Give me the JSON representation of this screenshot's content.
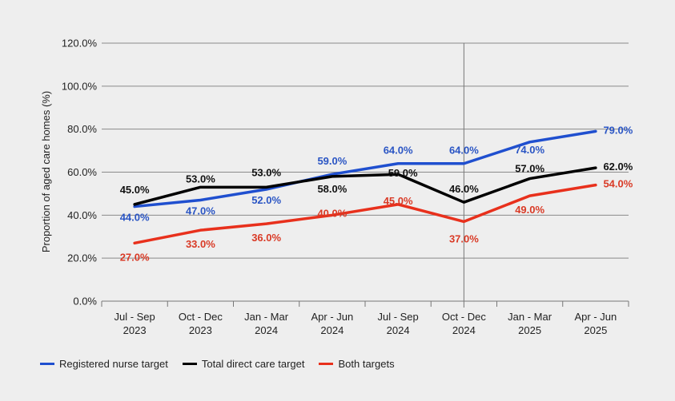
{
  "chart_data": {
    "type": "line",
    "title": "",
    "xlabel": "",
    "ylabel": "Proportion of aged care homes (%)",
    "ylim": [
      0,
      120
    ],
    "yticks": [
      "0.0%",
      "20.0%",
      "40.0%",
      "60.0%",
      "80.0%",
      "100.0%",
      "120.0%"
    ],
    "ytick_values": [
      0,
      20,
      40,
      60,
      80,
      100,
      120
    ],
    "grid": true,
    "legend_position": "bottom-left",
    "categories": [
      [
        "Jul - Sep",
        "2023"
      ],
      [
        "Oct - Dec",
        "2023"
      ],
      [
        "Jan - Mar",
        "2024"
      ],
      [
        "Apr - Jun",
        "2024"
      ],
      [
        "Jul - Sep",
        "2024"
      ],
      [
        "Oct - Dec",
        "2024"
      ],
      [
        "Jan - Mar",
        "2025"
      ],
      [
        "Apr - Jun",
        "2025"
      ]
    ],
    "vertical_marker_category_index": 5,
    "series": [
      {
        "name": "Registered nurse target",
        "color": "#1f4fcf",
        "label_color": "#2a55c4",
        "values": [
          44,
          47,
          52,
          59,
          64,
          64,
          74,
          79
        ],
        "labels": [
          "44.0%",
          "47.0%",
          "52.0%",
          "59.0%",
          "64.0%",
          "64.0%",
          "74.0%",
          "79.0%"
        ]
      },
      {
        "name": "Total direct care target",
        "color": "#000000",
        "label_color": "#111111",
        "values": [
          45,
          53,
          53,
          58,
          59,
          46,
          57,
          62
        ],
        "labels": [
          "45.0%",
          "53.0%",
          "53.0%",
          "58.0%",
          "59.0%",
          "46.0%",
          "57.0%",
          "62.0%"
        ]
      },
      {
        "name": "Both targets",
        "color": "#e8301c",
        "label_color": "#d93a26",
        "values": [
          27,
          33,
          36,
          40,
          45,
          37,
          49,
          54
        ],
        "labels": [
          "27.0%",
          "33.0%",
          "36.0%",
          "40.0%",
          "45.0%",
          "37.0%",
          "49.0%",
          "54.0%"
        ]
      }
    ]
  }
}
